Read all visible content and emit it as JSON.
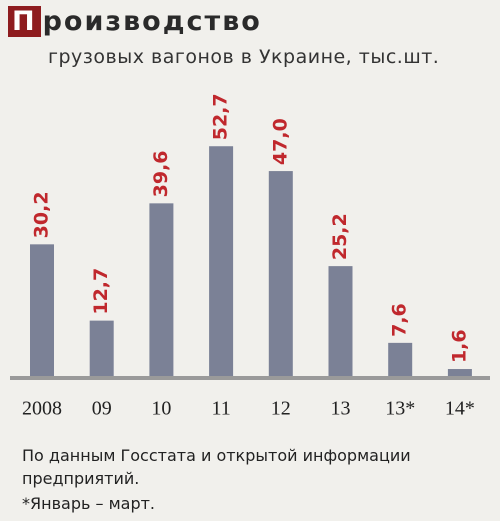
{
  "chart_data": {
    "type": "bar",
    "title": "Производство",
    "subtitle": "грузовых вагонов в Украине, тыс.шт.",
    "categories": [
      "2008",
      "09",
      "10",
      "11",
      "12",
      "13",
      "13*",
      "14*"
    ],
    "values": [
      30.2,
      12.7,
      39.6,
      52.7,
      47.0,
      25.2,
      7.6,
      1.6
    ],
    "value_labels": [
      "30,2",
      "12,7",
      "39,6",
      "52,7",
      "47,0",
      "25,2",
      "7,6",
      "1,6"
    ],
    "color": "#7b8196",
    "label_color": "#c0282d",
    "source": "По данным Госстата и открытой информации предприятий.",
    "footnote": "*Январь – март."
  }
}
